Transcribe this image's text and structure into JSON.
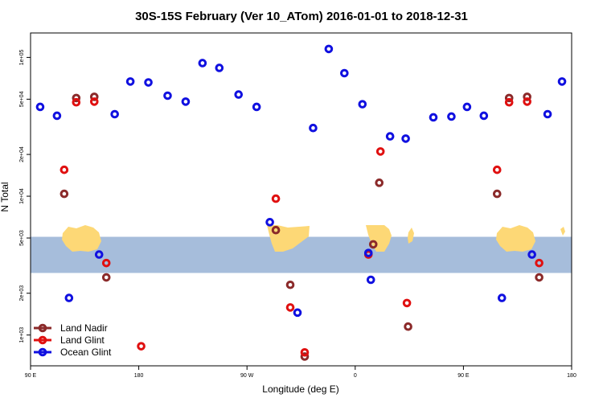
{
  "chart_data": {
    "type": "scatter",
    "title": "30S-15S February (Ver 10_ATom)   2016-01-01 to 2018-12-31",
    "xlabel": "Longitude (deg E)",
    "ylabel": "N Total",
    "x_scale": "linear",
    "y_scale": "log",
    "xlim": [
      90,
      540
    ],
    "ylim": [
      600,
      150000
    ],
    "x_ticks": [
      90,
      180,
      270,
      360,
      450,
      540
    ],
    "x_tick_labels": [
      "90 E",
      "180",
      "90 W",
      "0",
      "90 E",
      "180"
    ],
    "y_ticks": [
      1000,
      2000,
      5000,
      10000,
      20000,
      50000,
      100000
    ],
    "y_tick_labels": [
      "1e+03",
      "2e+03",
      "5e+03",
      "1e+04",
      "2e+04",
      "5e+04",
      "1e+05"
    ],
    "grid": false,
    "legend_position": "bottom-left",
    "map_band": {
      "y_range": [
        2800,
        5100
      ],
      "ocean_color": "#a6bddb",
      "land_color": "#fdd876"
    },
    "series": [
      {
        "name": "Land Nadir",
        "color": "#8b2a2a",
        "points": [
          {
            "x": 118,
            "y": 10400
          },
          {
            "x": 128,
            "y": 51000
          },
          {
            "x": 143,
            "y": 52000
          },
          {
            "x": 153,
            "y": 2600
          },
          {
            "x": 294,
            "y": 5700
          },
          {
            "x": 306,
            "y": 2300
          },
          {
            "x": 318,
            "y": 700
          },
          {
            "x": 375,
            "y": 4500
          },
          {
            "x": 380,
            "y": 12500
          },
          {
            "x": 404,
            "y": 1150
          },
          {
            "x": 478,
            "y": 10400
          },
          {
            "x": 488,
            "y": 51000
          },
          {
            "x": 503,
            "y": 52000
          },
          {
            "x": 513,
            "y": 2600
          }
        ]
      },
      {
        "name": "Land Glint",
        "color": "#e01010",
        "points": [
          {
            "x": 118,
            "y": 15500
          },
          {
            "x": 128,
            "y": 47500
          },
          {
            "x": 143,
            "y": 48000
          },
          {
            "x": 153,
            "y": 3300
          },
          {
            "x": 182,
            "y": 830
          },
          {
            "x": 294,
            "y": 9600
          },
          {
            "x": 306,
            "y": 1580
          },
          {
            "x": 318,
            "y": 750
          },
          {
            "x": 371,
            "y": 3800
          },
          {
            "x": 381,
            "y": 21000
          },
          {
            "x": 403,
            "y": 1700
          },
          {
            "x": 478,
            "y": 15500
          },
          {
            "x": 488,
            "y": 47500
          },
          {
            "x": 503,
            "y": 48000
          },
          {
            "x": 513,
            "y": 3300
          }
        ]
      },
      {
        "name": "Ocean Glint",
        "color": "#1010e0",
        "points": [
          {
            "x": 98,
            "y": 44000
          },
          {
            "x": 112,
            "y": 38000
          },
          {
            "x": 122,
            "y": 1850
          },
          {
            "x": 147,
            "y": 3800
          },
          {
            "x": 160,
            "y": 39000
          },
          {
            "x": 173,
            "y": 67000
          },
          {
            "x": 188,
            "y": 66000
          },
          {
            "x": 204,
            "y": 53000
          },
          {
            "x": 219,
            "y": 48000
          },
          {
            "x": 233,
            "y": 91000
          },
          {
            "x": 247,
            "y": 84000
          },
          {
            "x": 263,
            "y": 54000
          },
          {
            "x": 278,
            "y": 44000
          },
          {
            "x": 289,
            "y": 6500
          },
          {
            "x": 312,
            "y": 1450
          },
          {
            "x": 325,
            "y": 31000
          },
          {
            "x": 338,
            "y": 115000
          },
          {
            "x": 351,
            "y": 77000
          },
          {
            "x": 366,
            "y": 46000
          },
          {
            "x": 371,
            "y": 3900
          },
          {
            "x": 373,
            "y": 2500
          },
          {
            "x": 389,
            "y": 27000
          },
          {
            "x": 402,
            "y": 26000
          },
          {
            "x": 425,
            "y": 37000
          },
          {
            "x": 440,
            "y": 37500
          },
          {
            "x": 453,
            "y": 44000
          },
          {
            "x": 467,
            "y": 38000
          },
          {
            "x": 482,
            "y": 1850
          },
          {
            "x": 507,
            "y": 3800
          },
          {
            "x": 520,
            "y": 39000
          },
          {
            "x": 532,
            "y": 67000
          }
        ]
      }
    ]
  }
}
